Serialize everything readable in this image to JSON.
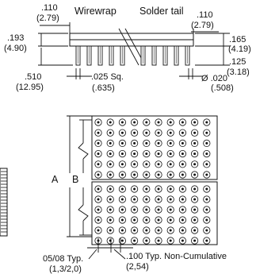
{
  "top_view": {
    "label_wirewrap": "Wirewrap",
    "label_solder_tail": "Solder tail",
    "dim_left_width_in": ".110",
    "dim_left_width_mm": "(2.79)",
    "dim_right_width_in": ".110",
    "dim_right_width_mm": "(2.79)",
    "dim_body_height_in": ".193",
    "dim_body_height_mm": "(4.90)",
    "dim_tail_length_in": ".510",
    "dim_tail_length_mm": "(12.95)",
    "dim_pin_square_in": ".025 Sq.",
    "dim_pin_square_mm": ".635)",
    "dim_right_height_in": ".165",
    "dim_right_height_mm": "(4.19)",
    "dim_right_tail_in": ".125",
    "dim_right_tail_mm": "(3.18)",
    "dim_pin_dia_in": "Ø .020",
    "dim_pin_dia_mm": "(.508)"
  },
  "grid_view": {
    "label_a": "A",
    "label_b": "B",
    "grid_cols": 10,
    "upper_rows": 6,
    "lower_rows": 6,
    "pitch_note_in": ".100 Typ. Non-Cumulative",
    "pitch_note_mm": "(2,54)",
    "edge_note_in": "05/08 Typ.",
    "edge_note_mm": "(1,3/2,0)"
  }
}
